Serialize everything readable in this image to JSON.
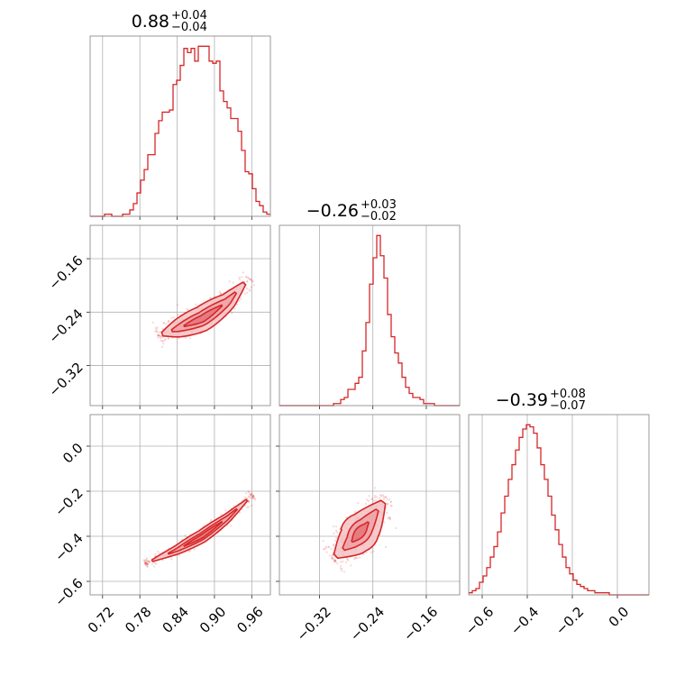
{
  "colors": {
    "accent": "#d62728",
    "fill": "#f4c2c4",
    "grid": "#b0b0b0",
    "frame": "#808080"
  },
  "chart_data": {
    "type": "corner",
    "parameters": [
      {
        "range": [
          0.7,
          0.99
        ],
        "ticks": [
          0.72,
          0.78,
          0.84,
          0.9,
          0.96
        ],
        "tick_labels": [
          "0.72",
          "0.78",
          "0.84",
          "0.90",
          "0.96"
        ]
      },
      {
        "range": [
          -0.38,
          -0.11
        ],
        "ticks": [
          -0.32,
          -0.24,
          -0.16
        ],
        "tick_labels": [
          "−0.32",
          "−0.24",
          "−0.16"
        ]
      },
      {
        "range": [
          -0.66,
          0.14
        ],
        "ticks": [
          -0.6,
          -0.4,
          -0.2,
          0.0
        ],
        "tick_labels": [
          "−0.6",
          "−0.4",
          "−0.2",
          "0.0"
        ]
      }
    ],
    "titles": [
      {
        "median": "0.88",
        "plus": "+0.04",
        "minus": "−0.04"
      },
      {
        "median": "−0.26",
        "plus": "+0.03",
        "minus": "−0.02"
      },
      {
        "median": "−0.39",
        "plus": "+0.08",
        "minus": "−0.07"
      }
    ],
    "histograms": [
      {
        "param": 0,
        "counts": [
          0,
          0,
          0,
          0,
          1,
          1,
          0,
          0,
          0,
          1,
          1,
          3,
          6,
          11,
          17,
          22,
          29,
          29,
          39,
          45,
          49,
          49,
          50,
          62,
          64,
          71,
          79,
          77,
          79,
          73,
          80,
          80,
          80,
          73,
          72,
          73,
          59,
          54,
          51,
          46,
          46,
          40,
          31,
          21,
          20,
          13,
          7,
          5,
          2,
          1
        ]
      },
      {
        "param": 1,
        "counts": [
          0,
          0,
          0,
          0,
          0,
          0,
          0,
          0,
          0,
          0,
          0,
          0,
          0,
          0,
          0,
          1,
          1,
          3,
          4,
          8,
          8,
          11,
          14,
          27,
          41,
          60,
          73,
          84,
          74,
          63,
          45,
          34,
          26,
          21,
          14,
          9,
          6,
          4,
          4,
          3,
          1,
          1,
          1,
          0,
          0,
          0,
          0,
          0,
          0,
          0
        ]
      },
      {
        "param": 2,
        "counts": [
          1,
          2,
          3,
          6,
          9,
          13,
          18,
          23,
          30,
          39,
          47,
          55,
          62,
          69,
          75,
          79,
          81,
          80,
          77,
          70,
          62,
          55,
          47,
          38,
          31,
          24,
          18,
          13,
          10,
          7,
          5,
          4,
          3,
          2,
          2,
          1,
          1,
          1,
          1,
          0,
          0,
          0,
          0,
          0,
          0,
          0,
          0,
          0,
          0,
          0
        ]
      }
    ],
    "scatter_pairs": [
      {
        "x_param": 0,
        "y_param": 1,
        "trend": {
          "x": [
            0.81,
            0.84,
            0.88,
            0.92,
            0.955
          ],
          "y": [
            -0.275,
            -0.265,
            -0.25,
            -0.225,
            -0.19
          ]
        }
      },
      {
        "x_param": 0,
        "y_param": 2,
        "trend": {
          "x": [
            0.79,
            0.84,
            0.88,
            0.92,
            0.96
          ],
          "y": [
            -0.52,
            -0.46,
            -0.4,
            -0.32,
            -0.22
          ]
        }
      },
      {
        "x_param": 1,
        "y_param": 2,
        "trend": {
          "x": [
            -0.3,
            -0.27,
            -0.25,
            -0.22
          ],
          "y": [
            -0.5,
            -0.42,
            -0.35,
            -0.23
          ]
        }
      }
    ]
  }
}
